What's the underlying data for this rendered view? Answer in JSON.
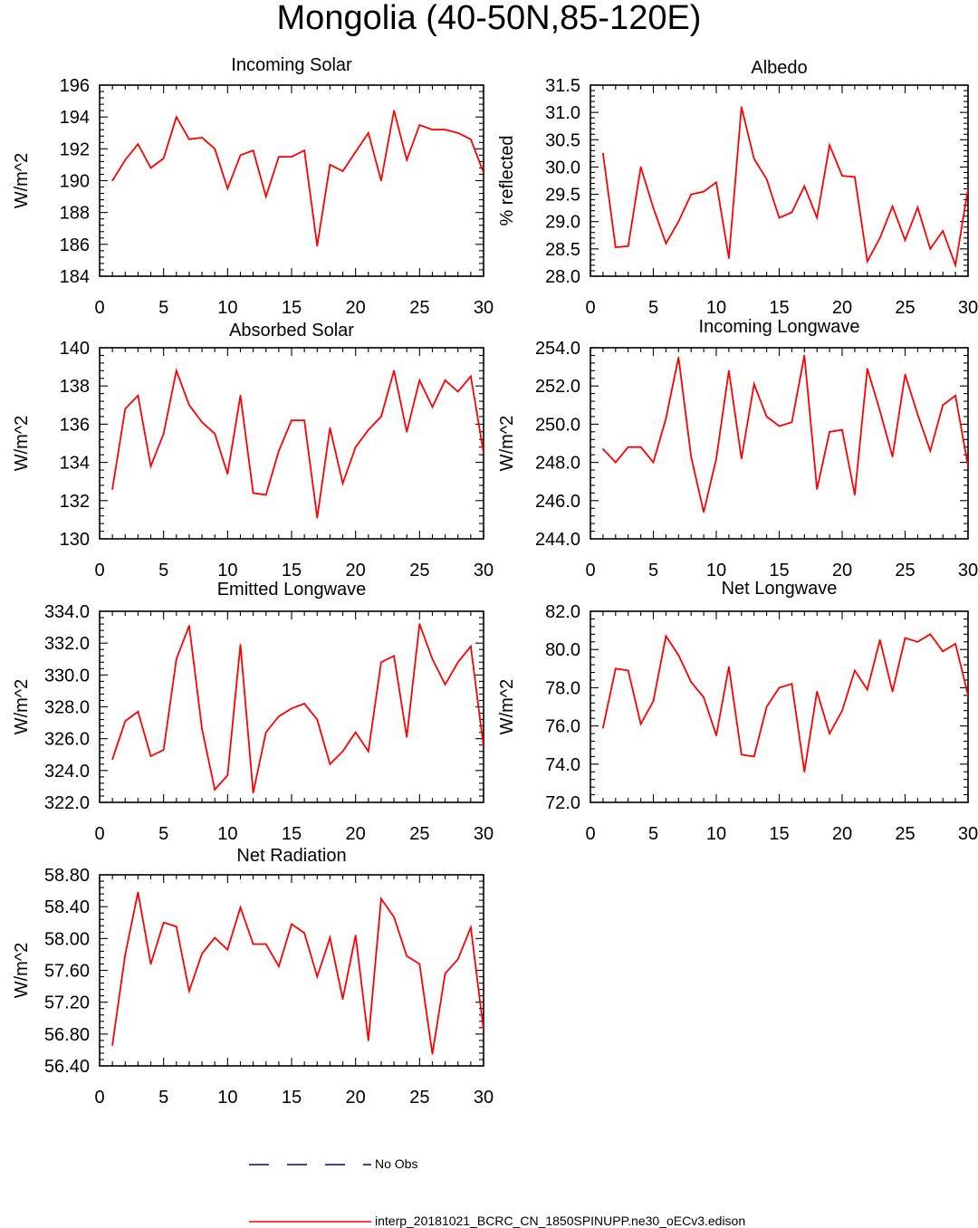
{
  "figure": {
    "title": "Mongolia (40-50N,85-120E)",
    "legend": [
      {
        "label": "No Obs",
        "color": "#00008b",
        "style": "dashed"
      },
      {
        "label": "interp_20181021_BCRC_CN_1850SPINUPP.ne30_oECv3.edison",
        "color": "#ff0000",
        "style": "solid"
      }
    ],
    "series_color": "#ff0000"
  },
  "chart_data": [
    {
      "type": "line",
      "title": "Incoming Solar",
      "ylabel": "W/m^2",
      "xlim": [
        0,
        30
      ],
      "ylim": [
        184,
        196
      ],
      "xticks": [
        "0",
        "5",
        "10",
        "15",
        "20",
        "25",
        "30"
      ],
      "yticks": [
        "184",
        "186",
        "188",
        "190",
        "192",
        "194",
        "196"
      ],
      "x": [
        1,
        2,
        3,
        4,
        5,
        6,
        7,
        8,
        9,
        10,
        11,
        12,
        13,
        14,
        15,
        16,
        17,
        18,
        19,
        20,
        21,
        22,
        23,
        24,
        25,
        26,
        27,
        28,
        29,
        30
      ],
      "series": [
        {
          "values": [
            190.0,
            191.3,
            192.3,
            190.8,
            191.4,
            194.0,
            192.6,
            192.7,
            192.0,
            189.5,
            191.6,
            191.9,
            189.0,
            191.5,
            191.5,
            191.9,
            185.9,
            191.0,
            190.6,
            191.8,
            193.0,
            190.0,
            194.4,
            191.3,
            193.5,
            193.2,
            193.2,
            193.0,
            192.6,
            190.5
          ]
        }
      ]
    },
    {
      "type": "line",
      "title": "Albedo",
      "ylabel": "% reflected",
      "xlim": [
        0,
        30
      ],
      "ylim": [
        28.0,
        31.5
      ],
      "xticks": [
        "0",
        "5",
        "10",
        "15",
        "20",
        "25",
        "30"
      ],
      "yticks": [
        "28.0",
        "28.5",
        "29.0",
        "29.5",
        "30.0",
        "30.5",
        "31.0",
        "31.5"
      ],
      "x": [
        1,
        2,
        3,
        4,
        5,
        6,
        7,
        8,
        9,
        10,
        11,
        12,
        13,
        14,
        15,
        16,
        17,
        18,
        19,
        20,
        21,
        22,
        23,
        24,
        25,
        26,
        27,
        28,
        29,
        30
      ],
      "series": [
        {
          "values": [
            30.25,
            28.53,
            28.55,
            30.0,
            29.25,
            28.6,
            29.0,
            29.5,
            29.55,
            29.72,
            28.33,
            31.1,
            30.15,
            29.78,
            29.07,
            29.17,
            29.65,
            29.07,
            30.4,
            29.84,
            29.82,
            28.27,
            28.7,
            29.28,
            28.66,
            29.26,
            28.5,
            28.83,
            28.2,
            29.6
          ]
        }
      ]
    },
    {
      "type": "line",
      "title": "Absorbed Solar",
      "ylabel": "W/m^2",
      "xlim": [
        0,
        30
      ],
      "ylim": [
        130,
        140
      ],
      "xticks": [
        "0",
        "5",
        "10",
        "15",
        "20",
        "25",
        "30"
      ],
      "yticks": [
        "130",
        "132",
        "134",
        "136",
        "138",
        "140"
      ],
      "x": [
        1,
        2,
        3,
        4,
        5,
        6,
        7,
        8,
        9,
        10,
        11,
        12,
        13,
        14,
        15,
        16,
        17,
        18,
        19,
        20,
        21,
        22,
        23,
        24,
        25,
        26,
        27,
        28,
        29,
        30
      ],
      "series": [
        {
          "values": [
            132.6,
            136.8,
            137.5,
            133.8,
            135.5,
            138.8,
            137.0,
            136.1,
            135.5,
            133.4,
            137.5,
            132.4,
            132.3,
            134.6,
            136.2,
            136.2,
            131.1,
            135.8,
            132.9,
            134.8,
            135.7,
            136.4,
            138.8,
            135.6,
            138.3,
            136.9,
            138.3,
            137.7,
            138.5,
            134.5
          ]
        }
      ]
    },
    {
      "type": "line",
      "title": "Incoming Longwave",
      "ylabel": "W/m^2",
      "xlim": [
        0,
        30
      ],
      "ylim": [
        244.0,
        254.0
      ],
      "xticks": [
        "0",
        "5",
        "10",
        "15",
        "20",
        "25",
        "30"
      ],
      "yticks": [
        "244.0",
        "246.0",
        "248.0",
        "250.0",
        "252.0",
        "254.0"
      ],
      "x": [
        1,
        2,
        3,
        4,
        5,
        6,
        7,
        8,
        9,
        10,
        11,
        12,
        13,
        14,
        15,
        16,
        17,
        18,
        19,
        20,
        21,
        22,
        23,
        24,
        25,
        26,
        27,
        28,
        29,
        30
      ],
      "series": [
        {
          "values": [
            248.7,
            248.0,
            248.8,
            248.8,
            248.0,
            250.3,
            253.5,
            248.3,
            245.4,
            248.2,
            252.8,
            248.2,
            252.1,
            250.4,
            249.9,
            250.1,
            253.6,
            246.6,
            249.6,
            249.7,
            246.3,
            252.9,
            250.7,
            248.3,
            252.6,
            250.5,
            248.6,
            251.0,
            251.5,
            247.8
          ]
        }
      ]
    },
    {
      "type": "line",
      "title": "Emitted Longwave",
      "ylabel": "W/m^2",
      "xlim": [
        0,
        30
      ],
      "ylim": [
        322.0,
        334.0
      ],
      "xticks": [
        "0",
        "5",
        "10",
        "15",
        "20",
        "25",
        "30"
      ],
      "yticks": [
        "322.0",
        "324.0",
        "326.0",
        "328.0",
        "330.0",
        "332.0",
        "334.0"
      ],
      "x": [
        1,
        2,
        3,
        4,
        5,
        6,
        7,
        8,
        9,
        10,
        11,
        12,
        13,
        14,
        15,
        16,
        17,
        18,
        19,
        20,
        21,
        22,
        23,
        24,
        25,
        26,
        27,
        28,
        29,
        30
      ],
      "series": [
        {
          "values": [
            324.7,
            327.1,
            327.7,
            324.9,
            325.3,
            331.0,
            333.1,
            326.6,
            322.8,
            323.7,
            331.9,
            322.6,
            326.4,
            327.4,
            327.9,
            328.2,
            327.2,
            324.4,
            325.2,
            326.4,
            325.2,
            330.8,
            331.2,
            326.1,
            333.2,
            331.0,
            329.4,
            330.8,
            331.8,
            325.5
          ]
        }
      ]
    },
    {
      "type": "line",
      "title": "Net Longwave",
      "ylabel": "W/m^2",
      "xlim": [
        0,
        30
      ],
      "ylim": [
        72.0,
        82.0
      ],
      "xticks": [
        "0",
        "5",
        "10",
        "15",
        "20",
        "25",
        "30"
      ],
      "yticks": [
        "72.0",
        "74.0",
        "76.0",
        "78.0",
        "80.0",
        "82.0"
      ],
      "x": [
        1,
        2,
        3,
        4,
        5,
        6,
        7,
        8,
        9,
        10,
        11,
        12,
        13,
        14,
        15,
        16,
        17,
        18,
        19,
        20,
        21,
        22,
        23,
        24,
        25,
        26,
        27,
        28,
        29,
        30
      ],
      "series": [
        {
          "values": [
            75.9,
            79.0,
            78.9,
            76.1,
            77.3,
            80.7,
            79.7,
            78.3,
            77.5,
            75.5,
            79.1,
            74.5,
            74.4,
            77.0,
            78.0,
            78.2,
            73.6,
            77.8,
            75.6,
            76.8,
            78.9,
            77.9,
            80.5,
            77.8,
            80.6,
            80.4,
            80.8,
            79.9,
            80.3,
            77.6
          ]
        }
      ]
    },
    {
      "type": "line",
      "title": "Net Radiation",
      "ylabel": "W/m^2",
      "xlim": [
        0,
        30
      ],
      "ylim": [
        56.4,
        58.8
      ],
      "xticks": [
        "0",
        "5",
        "10",
        "15",
        "20",
        "25",
        "30"
      ],
      "yticks": [
        "56.40",
        "56.80",
        "57.20",
        "57.60",
        "58.00",
        "58.40",
        "58.80"
      ],
      "x": [
        1,
        2,
        3,
        4,
        5,
        6,
        7,
        8,
        9,
        10,
        11,
        12,
        13,
        14,
        15,
        16,
        17,
        18,
        19,
        20,
        21,
        22,
        23,
        24,
        25,
        26,
        27,
        28,
        29,
        30
      ],
      "series": [
        {
          "values": [
            56.66,
            57.8,
            58.58,
            57.68,
            58.2,
            58.15,
            57.34,
            57.81,
            58.01,
            57.86,
            58.39,
            57.93,
            57.93,
            57.65,
            58.18,
            58.07,
            57.52,
            58.01,
            57.24,
            58.04,
            56.72,
            58.5,
            58.27,
            57.78,
            57.68,
            56.55,
            57.56,
            57.74,
            58.14,
            56.85
          ]
        }
      ]
    }
  ]
}
